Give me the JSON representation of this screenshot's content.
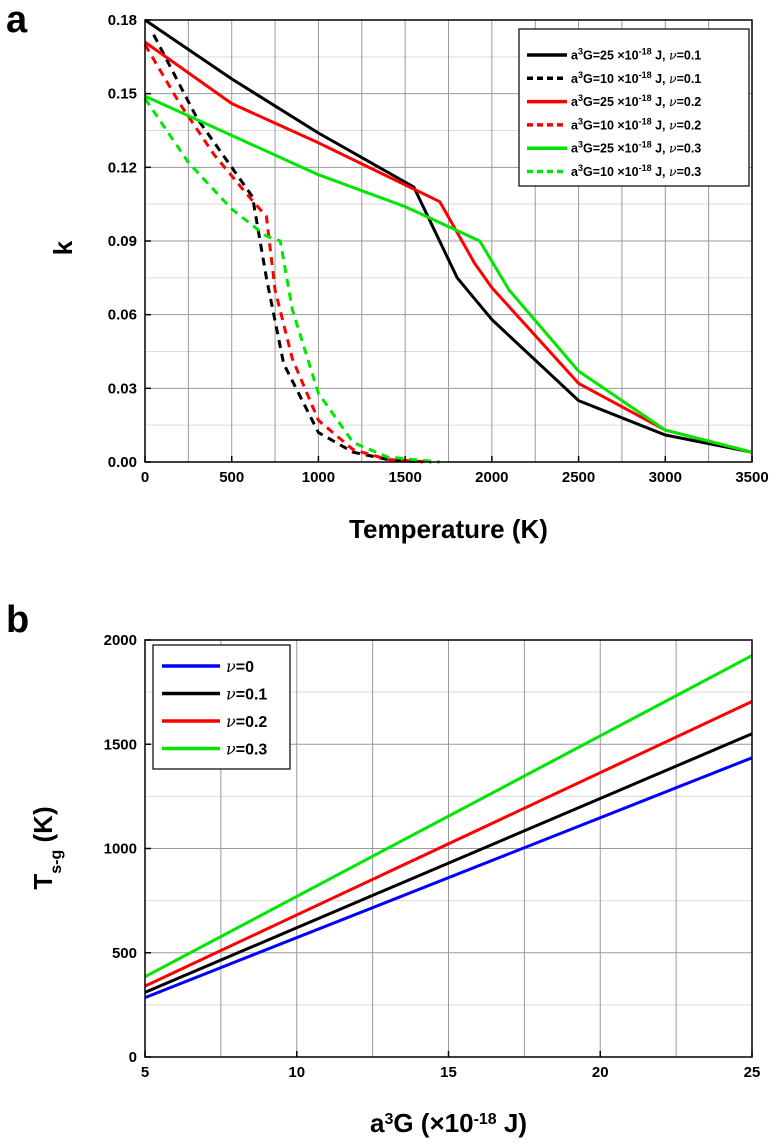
{
  "panels": {
    "a_label": "a",
    "b_label": "b"
  },
  "chart_data": [
    {
      "type": "line",
      "panel": "a",
      "xlabel": "Temperature (K)",
      "ylabel": "k",
      "xlim": [
        0,
        3500
      ],
      "ylim": [
        0,
        0.18
      ],
      "xticks": [
        "0",
        "500",
        "1000",
        "1500",
        "2000",
        "2500",
        "3000",
        "3500"
      ],
      "yticks": [
        "0.00",
        "0.03",
        "0.06",
        "0.09",
        "0.12",
        "0.15",
        "0.18"
      ],
      "grid": true,
      "legend_position": "top-right",
      "series": [
        {
          "name": "a³G=25 ×10⁻¹⁸ J, ν=0.1",
          "legend": {
            "pre": "a",
            "sup1": "3",
            "mid": "G=25 ×10",
            "sup2": "-18",
            "post": " J, ",
            "nu": "ν",
            "val": "=0.1"
          },
          "color": "#000000",
          "dash": false,
          "x": [
            0,
            500,
            1000,
            1550,
            1800,
            2000,
            2500,
            3000,
            3500
          ],
          "y": [
            0.18,
            0.156,
            0.134,
            0.112,
            0.075,
            0.058,
            0.025,
            0.011,
            0.004
          ]
        },
        {
          "name": "a³G=10 ×10⁻¹⁸ J, ν=0.1",
          "legend": {
            "pre": "a",
            "sup1": "3",
            "mid": "G=10 ×10",
            "sup2": "-18",
            "post": " J, ",
            "nu": "ν",
            "val": "=0.1"
          },
          "color": "#000000",
          "dash": true,
          "x": [
            50,
            300,
            500,
            620,
            700,
            800,
            1000,
            1200,
            1400,
            1600
          ],
          "y": [
            0.174,
            0.14,
            0.12,
            0.108,
            0.075,
            0.04,
            0.012,
            0.004,
            0.001,
            0.0
          ]
        },
        {
          "name": "a³G=25 ×10⁻¹⁸ J, ν=0.2",
          "legend": {
            "pre": "a",
            "sup1": "3",
            "mid": "G=25 ×10",
            "sup2": "-18",
            "post": " J, ",
            "nu": "ν",
            "val": "=0.2"
          },
          "color": "#ff0000",
          "dash": false,
          "x": [
            0,
            500,
            1000,
            1700,
            1900,
            2000,
            2500,
            3000,
            3500
          ],
          "y": [
            0.171,
            0.146,
            0.13,
            0.106,
            0.081,
            0.071,
            0.032,
            0.013,
            0.004
          ]
        },
        {
          "name": "a³G=10 ×10⁻¹⁸ J, ν=0.2",
          "legend": {
            "pre": "a",
            "sup1": "3",
            "mid": "G=10 ×10",
            "sup2": "-18",
            "post": " J, ",
            "nu": "ν",
            "val": "=0.2"
          },
          "color": "#ff0000",
          "dash": true,
          "x": [
            0,
            200,
            400,
            600,
            700,
            750,
            850,
            1000,
            1200,
            1400,
            1650
          ],
          "y": [
            0.17,
            0.146,
            0.125,
            0.108,
            0.1,
            0.07,
            0.042,
            0.017,
            0.005,
            0.001,
            0.0
          ]
        },
        {
          "name": "a³G=25 ×10⁻¹⁸ J, ν=0.3",
          "legend": {
            "pre": "a",
            "sup1": "3",
            "mid": "G=25 ×10",
            "sup2": "-18",
            "post": " J, ",
            "nu": "ν",
            "val": "=0.3"
          },
          "color": "#00e600",
          "dash": false,
          "x": [
            0,
            500,
            1000,
            1500,
            1930,
            2100,
            2500,
            3000,
            3500
          ],
          "y": [
            0.149,
            0.133,
            0.117,
            0.104,
            0.09,
            0.07,
            0.037,
            0.013,
            0.004
          ]
        },
        {
          "name": "a³G=10 ×10⁻¹⁸ J, ν=0.3",
          "legend": {
            "pre": "a",
            "sup1": "3",
            "mid": "G=10 ×10",
            "sup2": "-18",
            "post": " J, ",
            "nu": "ν",
            "val": "=0.3"
          },
          "color": "#00e600",
          "dash": true,
          "x": [
            0,
            250,
            500,
            700,
            780,
            850,
            1000,
            1200,
            1400,
            1700
          ],
          "y": [
            0.148,
            0.122,
            0.103,
            0.092,
            0.09,
            0.062,
            0.028,
            0.008,
            0.002,
            0.0
          ]
        }
      ]
    },
    {
      "type": "line",
      "panel": "b",
      "xlabel": {
        "pre": "a",
        "sup1": "3",
        "mid": "G (×10",
        "sup2": "-18",
        "post": " J)"
      },
      "ylabel": {
        "main": "T",
        "sub": "s-g",
        "post": " (K)"
      },
      "xlim": [
        5,
        25
      ],
      "ylim": [
        0,
        2000
      ],
      "xticks": [
        "5",
        "10",
        "15",
        "20",
        "25"
      ],
      "yticks": [
        "0",
        "500",
        "1000",
        "1500",
        "2000"
      ],
      "grid": true,
      "legend_position": "top-left",
      "series": [
        {
          "name": "ν=0",
          "legend": {
            "nu": "ν",
            "val": "=0"
          },
          "color": "#0000ff",
          "x": [
            5,
            25
          ],
          "y": [
            285,
            1435
          ]
        },
        {
          "name": "ν=0.1",
          "legend": {
            "nu": "ν",
            "val": "=0.1"
          },
          "color": "#000000",
          "x": [
            5,
            25
          ],
          "y": [
            310,
            1550
          ]
        },
        {
          "name": "ν=0.2",
          "legend": {
            "nu": "ν",
            "val": "=0.2"
          },
          "color": "#ff0000",
          "x": [
            5,
            25
          ],
          "y": [
            340,
            1705
          ]
        },
        {
          "name": "ν=0.3",
          "legend": {
            "nu": "ν",
            "val": "=0.3"
          },
          "color": "#00e600",
          "x": [
            5,
            25
          ],
          "y": [
            385,
            1925
          ]
        }
      ]
    }
  ]
}
